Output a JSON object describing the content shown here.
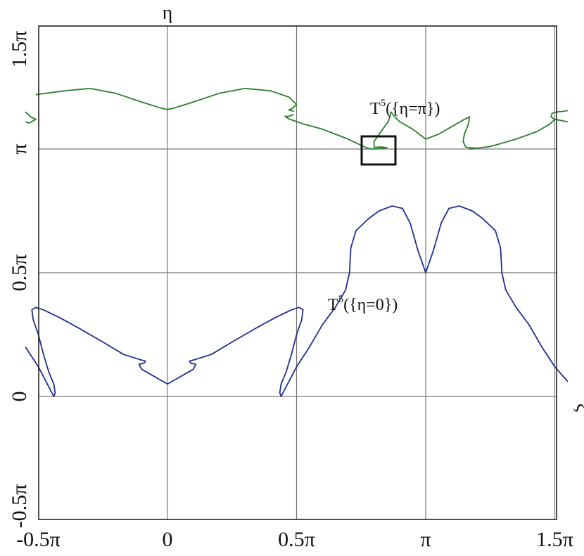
{
  "chart_data": {
    "type": "line",
    "title": "",
    "xlabel": "ξ",
    "ylabel": "η",
    "xlim": [
      -0.55,
      1.55
    ],
    "ylim": [
      -0.55,
      1.5
    ],
    "xlim_unit": "π",
    "grid": true,
    "x_ticks": [
      {
        "value": -0.5,
        "label": "-0.5π"
      },
      {
        "value": 0,
        "label": "0"
      },
      {
        "value": 0.5,
        "label": "0.5π"
      },
      {
        "value": 1,
        "label": "π"
      },
      {
        "value": 1.5,
        "label": "1.5π"
      }
    ],
    "y_ticks": [
      {
        "value": -0.5,
        "label": "-0.5π"
      },
      {
        "value": 0,
        "label": "0"
      },
      {
        "value": 0.5,
        "label": "0.5π"
      },
      {
        "value": 1,
        "label": "π"
      },
      {
        "value": 1.5,
        "label": "1.5π"
      }
    ],
    "series": [
      {
        "color": "#2e7d2e",
        "segments": [
          [
            [
              -0.55,
              1.15
            ],
            [
              -0.53,
              1.13
            ],
            [
              -0.51,
              1.12
            ],
            [
              -0.535,
              1.105
            ],
            [
              -0.55,
              1.11
            ]
          ],
          [
            [
              -0.51,
              1.22
            ],
            [
              -0.4,
              1.235
            ],
            [
              -0.3,
              1.245
            ],
            [
              -0.2,
              1.225
            ],
            [
              -0.1,
              1.19
            ],
            [
              -0.03,
              1.167
            ],
            [
              0,
              1.16
            ],
            [
              0.03,
              1.167
            ],
            [
              0.1,
              1.19
            ],
            [
              0.2,
              1.225
            ],
            [
              0.3,
              1.245
            ],
            [
              0.4,
              1.235
            ],
            [
              0.47,
              1.21
            ],
            [
              0.5,
              1.18
            ],
            [
              0.485,
              1.165
            ],
            [
              0.47,
              1.158
            ],
            [
              0.49,
              1.152
            ]
          ],
          [
            [
              0.49,
              1.14
            ],
            [
              0.47,
              1.132
            ],
            [
              0.455,
              1.132
            ],
            [
              0.47,
              1.122
            ],
            [
              0.53,
              1.1
            ],
            [
              0.6,
              1.08
            ],
            [
              0.65,
              1.06
            ],
            [
              0.7,
              1.04
            ],
            [
              0.74,
              1.02
            ],
            [
              0.77,
              1.005
            ],
            [
              0.79,
              1.0
            ],
            [
              0.83,
              1.002
            ],
            [
              0.85,
              1.005
            ],
            [
              0.83,
              1.008
            ],
            [
              0.8,
              1.007
            ],
            [
              0.8,
              1.03
            ],
            [
              0.82,
              1.06
            ],
            [
              0.84,
              1.09
            ],
            [
              0.855,
              1.11
            ],
            [
              0.86,
              1.125
            ],
            [
              0.865,
              1.15
            ],
            [
              0.88,
              1.13
            ],
            [
              0.9,
              1.11
            ],
            [
              0.95,
              1.08
            ],
            [
              1.0,
              1.04
            ],
            [
              1.05,
              1.06
            ],
            [
              1.1,
              1.09
            ],
            [
              1.15,
              1.12
            ],
            [
              1.17,
              1.13
            ],
            [
              1.165,
              1.1
            ],
            [
              1.15,
              1.06
            ],
            [
              1.145,
              1.03
            ],
            [
              1.155,
              1.008
            ],
            [
              1.17,
              1.005
            ],
            [
              1.2,
              1.003
            ],
            [
              1.17,
              1.0
            ],
            [
              1.25,
              1.01
            ],
            [
              1.35,
              1.04
            ],
            [
              1.43,
              1.07
            ],
            [
              1.48,
              1.1
            ],
            [
              1.5,
              1.12
            ]
          ],
          [
            [
              1.55,
              1.11
            ],
            [
              1.5,
              1.12
            ],
            [
              1.485,
              1.13
            ],
            [
              1.49,
              1.145
            ],
            [
              1.51,
              1.15
            ],
            [
              1.53,
              1.152
            ],
            [
              1.55,
              1.155
            ]
          ]
        ]
      },
      {
        "color": "#1f2f8f",
        "segments": [
          [
            [
              -0.55,
              0.2
            ],
            [
              -0.5,
              0.12
            ],
            [
              -0.47,
              0.06
            ],
            [
              -0.45,
              0.02
            ],
            [
              -0.44,
              0.0
            ],
            [
              -0.435,
              0.015
            ],
            [
              -0.44,
              0.05
            ],
            [
              -0.46,
              0.1
            ],
            [
              -0.48,
              0.17
            ],
            [
              -0.5,
              0.25
            ],
            [
              -0.52,
              0.31
            ],
            [
              -0.525,
              0.35
            ],
            [
              -0.51,
              0.36
            ],
            [
              -0.48,
              0.35
            ],
            [
              -0.42,
              0.32
            ],
            [
              -0.35,
              0.28
            ],
            [
              -0.25,
              0.22
            ],
            [
              -0.17,
              0.17
            ],
            [
              -0.11,
              0.15
            ],
            [
              -0.085,
              0.143
            ],
            [
              -0.09,
              0.135
            ],
            [
              -0.11,
              0.13
            ],
            [
              -0.1,
              0.11
            ],
            [
              -0.05,
              0.08
            ],
            [
              0,
              0.05
            ],
            [
              0.05,
              0.08
            ],
            [
              0.1,
              0.11
            ],
            [
              0.11,
              0.13
            ],
            [
              0.09,
              0.135
            ],
            [
              0.085,
              0.143
            ],
            [
              0.11,
              0.15
            ],
            [
              0.17,
              0.17
            ],
            [
              0.25,
              0.22
            ],
            [
              0.35,
              0.28
            ],
            [
              0.42,
              0.32
            ],
            [
              0.48,
              0.35
            ],
            [
              0.51,
              0.36
            ],
            [
              0.525,
              0.35
            ],
            [
              0.52,
              0.31
            ],
            [
              0.5,
              0.25
            ],
            [
              0.48,
              0.17
            ],
            [
              0.46,
              0.1
            ],
            [
              0.44,
              0.05
            ],
            [
              0.435,
              0.015
            ],
            [
              0.44,
              0.0
            ],
            [
              0.45,
              0.02
            ],
            [
              0.47,
              0.06
            ],
            [
              0.5,
              0.12
            ],
            [
              0.55,
              0.2
            ],
            [
              0.6,
              0.29
            ],
            [
              0.65,
              0.36
            ],
            [
              0.69,
              0.43
            ],
            [
              0.705,
              0.5
            ],
            [
              0.71,
              0.6
            ],
            [
              0.73,
              0.67
            ],
            [
              0.78,
              0.72
            ],
            [
              0.82,
              0.75
            ],
            [
              0.87,
              0.77
            ],
            [
              0.91,
              0.76
            ],
            [
              0.94,
              0.7
            ],
            [
              0.97,
              0.59
            ],
            [
              1.0,
              0.5
            ],
            [
              1.03,
              0.59
            ],
            [
              1.06,
              0.7
            ],
            [
              1.09,
              0.76
            ],
            [
              1.13,
              0.77
            ],
            [
              1.18,
              0.75
            ],
            [
              1.22,
              0.72
            ],
            [
              1.27,
              0.67
            ],
            [
              1.29,
              0.6
            ],
            [
              1.295,
              0.5
            ],
            [
              1.31,
              0.43
            ],
            [
              1.35,
              0.36
            ],
            [
              1.4,
              0.29
            ],
            [
              1.45,
              0.2
            ],
            [
              1.5,
              0.12
            ],
            [
              1.55,
              0.06
            ]
          ]
        ]
      }
    ],
    "annotations": [
      {
        "base": "T",
        "sup": "5",
        "text": "({η=π})"
      },
      {
        "base": "T",
        "sup": "5",
        "text": "({η=0})"
      }
    ]
  }
}
